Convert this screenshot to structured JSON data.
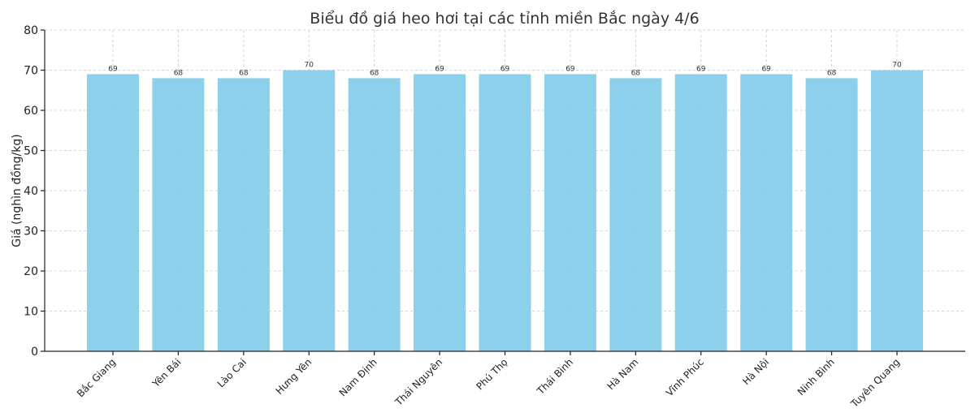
{
  "chart_data": {
    "type": "bar",
    "title": "Biểu đồ giá heo hơi tại các tỉnh miền Bắc ngày 4/6",
    "xlabel": "",
    "ylabel": "Giá (nghìn đồng/kg)",
    "categories": [
      "Bắc Giang",
      "Yên Bái",
      "Lào Cai",
      "Hưng Yên",
      "Nam Định",
      "Thái Nguyên",
      "Phú Thọ",
      "Thái Bình",
      "Hà Nam",
      "Vĩnh Phúc",
      "Hà Nội",
      "Ninh Bình",
      "Tuyên Quang"
    ],
    "values": [
      69,
      68,
      68,
      70,
      68,
      69,
      69,
      69,
      68,
      69,
      69,
      68,
      70
    ],
    "ylim": [
      0,
      80
    ],
    "yticks": [
      0,
      10,
      20,
      30,
      40,
      50,
      60,
      70,
      80
    ],
    "grid": true,
    "bar_color": "#87CEEB"
  }
}
